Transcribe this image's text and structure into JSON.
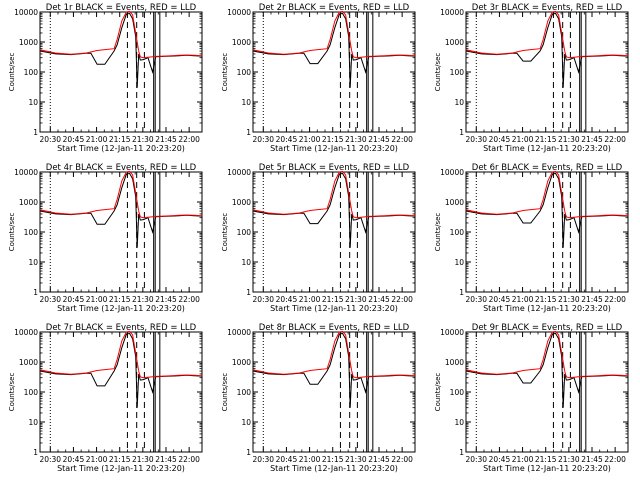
{
  "chart_data": {
    "type": "line",
    "layout": "3x3 grid",
    "ylabel": "Counts/sec",
    "yscale": "log",
    "ylim": [
      1,
      10000
    ],
    "yticks": [
      1,
      10,
      100,
      1000,
      10000
    ],
    "xticks": [
      "20:30",
      "20:45",
      "21:00",
      "21:15",
      "21:30",
      "21:45",
      "22:00"
    ],
    "xlabel": "Start Time (12-Jan-11 20:23:20)",
    "xlim_minutes_after_start": [
      0,
      105
    ],
    "dotted_marker_time": "20:30",
    "dashed_marker_times": [
      "21:20",
      "21:26",
      "21:31"
    ],
    "solid_marker_times": [
      "21:37",
      "21:38",
      "21:41"
    ],
    "colors": {
      "events": "#000000",
      "lld": "#ff0000",
      "axes": "#000000"
    },
    "series_template": [
      {
        "name": "Events",
        "x_minutes": [
          0,
          10,
          20,
          30,
          37,
          42,
          48,
          50,
          53,
          56,
          58,
          60,
          62,
          63,
          64,
          65,
          67,
          70,
          73,
          75,
          80,
          85,
          90,
          95,
          100,
          105
        ],
        "values": [
          500,
          400,
          380,
          420,
          430,
          460,
          500,
          800,
          3000,
          8500,
          9000,
          6000,
          1500,
          30,
          400,
          250,
          260,
          300,
          100,
          320,
          330,
          340,
          350,
          360,
          350,
          340
        ]
      },
      {
        "name": "LLD",
        "x_minutes": [
          0,
          10,
          20,
          30,
          37,
          42,
          48,
          50,
          53,
          56,
          58,
          60,
          62,
          64,
          65,
          67,
          70,
          73,
          75,
          80,
          85,
          90,
          95,
          100,
          105
        ],
        "values": [
          550,
          430,
          390,
          430,
          520,
          560,
          600,
          1200,
          5000,
          10000,
          10500,
          8000,
          2000,
          500,
          320,
          300,
          310,
          320,
          330,
          340,
          350,
          360,
          370,
          360,
          350
        ]
      }
    ],
    "panels": [
      {
        "title": "Det  1r  BLACK = Events, RED = LLD",
        "dip": [
          33,
          42,
          180
        ]
      },
      {
        "title": "Det  2r  BLACK = Events, RED = LLD",
        "dip": [
          33,
          42,
          190
        ]
      },
      {
        "title": "Det  3r  BLACK = Events, RED = LLD",
        "dip": [
          33,
          42,
          230
        ]
      },
      {
        "title": "Det  4r  BLACK = Events, RED = LLD",
        "dip": [
          33,
          42,
          180
        ]
      },
      {
        "title": "Det  5r  BLACK = Events, RED = LLD",
        "dip": [
          33,
          42,
          190
        ]
      },
      {
        "title": "Det  6r  BLACK = Events, RED = LLD",
        "dip": [
          33,
          42,
          200
        ]
      },
      {
        "title": "Det  7r  BLACK = Events, RED = LLD",
        "dip": [
          33,
          42,
          160
        ]
      },
      {
        "title": "Det  8r  BLACK = Events, RED = LLD",
        "dip": [
          33,
          42,
          180
        ]
      },
      {
        "title": "Det  9r  BLACK = Events, RED = LLD",
        "dip": [
          33,
          42,
          200
        ]
      }
    ]
  }
}
